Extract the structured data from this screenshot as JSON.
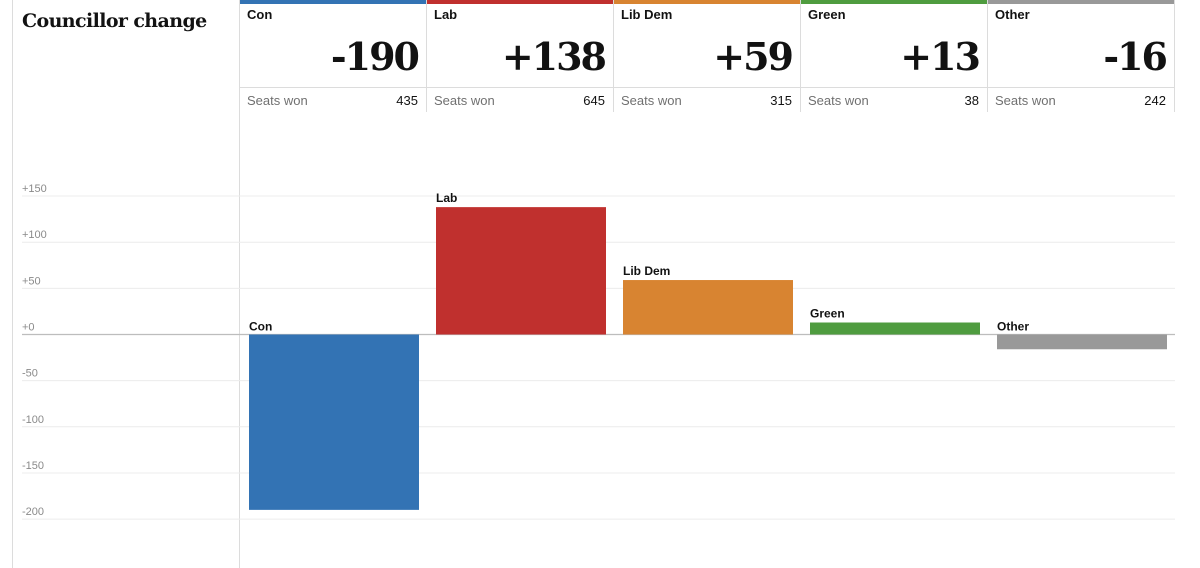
{
  "title": "Councillor change",
  "colors": {
    "Con": "#3373b4",
    "Lab": "#c0302e",
    "Lib Dem": "#d88431",
    "Green": "#4f9c3f",
    "Other": "#999999"
  },
  "cards": [
    {
      "party": "Con",
      "change": "-190",
      "seats_label": "Seats won",
      "seats": "435"
    },
    {
      "party": "Lab",
      "change": "+138",
      "seats_label": "Seats won",
      "seats": "645"
    },
    {
      "party": "Lib Dem",
      "change": "+59",
      "seats_label": "Seats won",
      "seats": "315"
    },
    {
      "party": "Green",
      "change": "+13",
      "seats_label": "Seats won",
      "seats": "38"
    },
    {
      "party": "Other",
      "change": "-16",
      "seats_label": "Seats won",
      "seats": "242"
    }
  ],
  "chart_data": {
    "type": "bar",
    "title": "Councillor change",
    "categories": [
      "Con",
      "Lab",
      "Lib Dem",
      "Green",
      "Other"
    ],
    "values": [
      -190,
      138,
      59,
      13,
      -16
    ],
    "ylim": [
      -200,
      150
    ],
    "yticks": [
      150,
      100,
      50,
      0,
      -50,
      -100,
      -150,
      -200
    ],
    "ytick_labels": [
      "+150",
      "+100",
      "+50",
      "+0",
      "-50",
      "-100",
      "-150",
      "-200"
    ],
    "xlabel": "",
    "ylabel": "",
    "grid": true,
    "legend": "none"
  }
}
